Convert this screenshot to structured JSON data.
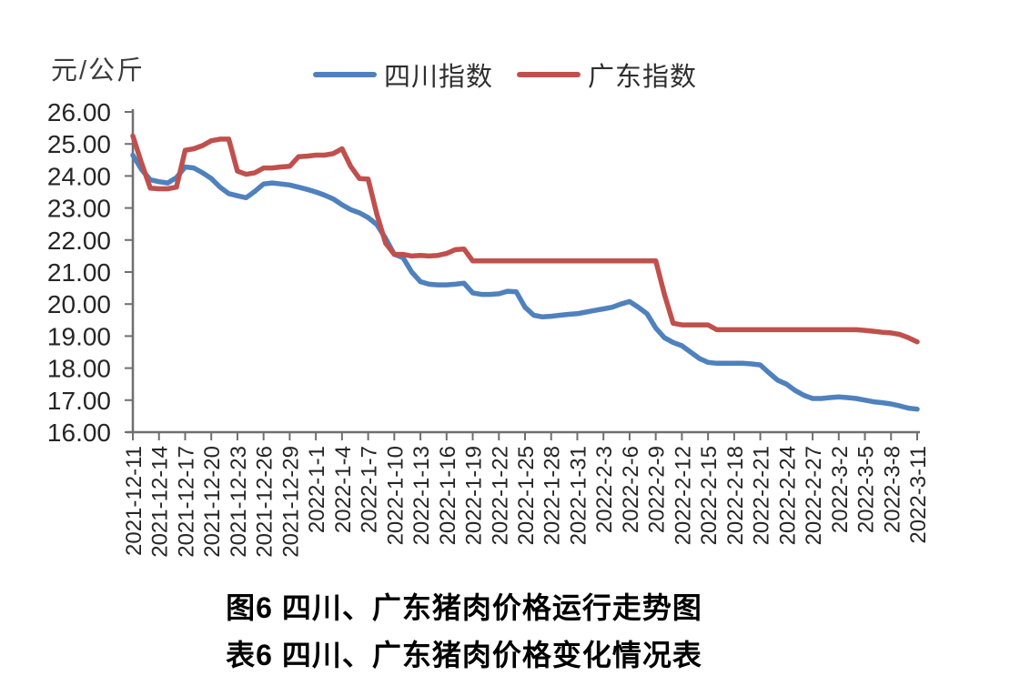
{
  "unit_label": "元/公斤",
  "legend": {
    "sichuan": "四川指数",
    "guangdong": "广东指数"
  },
  "captions": {
    "figure": "图6 四川、广东猪肉价格运行走势图",
    "table": "表6 四川、广东猪肉价格变化情况表"
  },
  "colors": {
    "sichuan": "#4F81BD",
    "guangdong": "#C0504D",
    "axis": "#6F6F6F",
    "tick_label": "#262626"
  },
  "chart_data": {
    "type": "line",
    "title": "图6 四川、广东猪肉价格运行走势图",
    "ylabel": "元/公斤",
    "ylim": [
      16,
      26
    ],
    "ytick_step": 1,
    "grid": false,
    "legend_position": "top",
    "x": [
      "2021-12-11",
      "2021-12-12",
      "2021-12-13",
      "2021-12-14",
      "2021-12-15",
      "2021-12-16",
      "2021-12-17",
      "2021-12-18",
      "2021-12-19",
      "2021-12-20",
      "2021-12-21",
      "2021-12-22",
      "2021-12-23",
      "2021-12-24",
      "2021-12-25",
      "2021-12-26",
      "2021-12-27",
      "2021-12-28",
      "2021-12-29",
      "2021-12-30",
      "2021-12-31",
      "2022-1-1",
      "2022-1-2",
      "2022-1-3",
      "2022-1-4",
      "2022-1-5",
      "2022-1-6",
      "2022-1-7",
      "2022-1-8",
      "2022-1-9",
      "2022-1-10",
      "2022-1-11",
      "2022-1-12",
      "2022-1-13",
      "2022-1-14",
      "2022-1-15",
      "2022-1-16",
      "2022-1-17",
      "2022-1-18",
      "2022-1-19",
      "2022-1-20",
      "2022-1-21",
      "2022-1-22",
      "2022-1-23",
      "2022-1-24",
      "2022-1-25",
      "2022-1-26",
      "2022-1-27",
      "2022-1-28",
      "2022-1-29",
      "2022-1-30",
      "2022-1-31",
      "2022-2-1",
      "2022-2-2",
      "2022-2-3",
      "2022-2-4",
      "2022-2-5",
      "2022-2-6",
      "2022-2-7",
      "2022-2-8",
      "2022-2-9",
      "2022-2-10",
      "2022-2-11",
      "2022-2-12",
      "2022-2-13",
      "2022-2-14",
      "2022-2-15",
      "2022-2-16",
      "2022-2-17",
      "2022-2-18",
      "2022-2-19",
      "2022-2-20",
      "2022-2-21",
      "2022-2-22",
      "2022-2-23",
      "2022-2-24",
      "2022-2-25",
      "2022-2-26",
      "2022-2-27",
      "2022-2-28",
      "2022-3-1",
      "2022-3-2",
      "2022-3-3",
      "2022-3-4",
      "2022-3-5",
      "2022-3-6",
      "2022-3-7",
      "2022-3-8",
      "2022-3-9",
      "2022-3-10",
      "2022-3-11"
    ],
    "x_tick_labels": [
      "2021-12-11",
      "2021-12-14",
      "2021-12-17",
      "2021-12-20",
      "2021-12-23",
      "2021-12-26",
      "2021-12-29",
      "2022-1-1",
      "2022-1-4",
      "2022-1-7",
      "2022-1-10",
      "2022-1-13",
      "2022-1-16",
      "2022-1-19",
      "2022-1-22",
      "2022-1-25",
      "2022-1-28",
      "2022-1-31",
      "2022-2-3",
      "2022-2-6",
      "2022-2-9",
      "2022-2-12",
      "2022-2-15",
      "2022-2-18",
      "2022-2-21",
      "2022-2-24",
      "2022-2-27",
      "2022-3-2",
      "2022-3-5",
      "2022-3-8",
      "2022-3-11"
    ],
    "series": [
      {
        "key": "sichuan",
        "name": "四川指数",
        "color": "#4F81BD",
        "values": [
          24.65,
          24.2,
          23.88,
          23.82,
          23.78,
          23.95,
          24.28,
          24.25,
          24.1,
          23.92,
          23.65,
          23.45,
          23.38,
          23.32,
          23.52,
          23.75,
          23.78,
          23.75,
          23.72,
          23.65,
          23.58,
          23.5,
          23.4,
          23.28,
          23.1,
          22.95,
          22.85,
          22.7,
          22.48,
          22.05,
          21.55,
          21.45,
          21.0,
          20.7,
          20.62,
          20.6,
          20.6,
          20.62,
          20.65,
          20.35,
          20.3,
          20.3,
          20.32,
          20.4,
          20.38,
          19.9,
          19.65,
          19.6,
          19.62,
          19.65,
          19.68,
          19.7,
          19.75,
          19.8,
          19.85,
          19.9,
          20.0,
          20.08,
          19.9,
          19.7,
          19.25,
          18.95,
          18.8,
          18.7,
          18.5,
          18.3,
          18.18,
          18.15,
          18.15,
          18.15,
          18.15,
          18.13,
          18.1,
          17.85,
          17.62,
          17.5,
          17.3,
          17.15,
          17.05,
          17.05,
          17.08,
          17.1,
          17.08,
          17.05,
          17.0,
          16.95,
          16.92,
          16.88,
          16.82,
          16.75,
          16.72
        ]
      },
      {
        "key": "guangdong",
        "name": "广东指数",
        "color": "#C0504D",
        "values": [
          25.25,
          24.4,
          23.62,
          23.6,
          23.6,
          23.65,
          24.8,
          24.85,
          24.95,
          25.1,
          25.15,
          25.15,
          24.15,
          24.05,
          24.1,
          24.25,
          24.25,
          24.28,
          24.3,
          24.6,
          24.62,
          24.65,
          24.65,
          24.7,
          24.85,
          24.3,
          23.92,
          23.9,
          22.8,
          21.9,
          21.55,
          21.55,
          21.5,
          21.52,
          21.5,
          21.52,
          21.58,
          21.7,
          21.72,
          21.35,
          21.35,
          21.35,
          21.35,
          21.35,
          21.35,
          21.35,
          21.35,
          21.35,
          21.35,
          21.35,
          21.35,
          21.35,
          21.35,
          21.35,
          21.35,
          21.35,
          21.35,
          21.35,
          21.35,
          21.35,
          21.35,
          20.3,
          19.4,
          19.35,
          19.35,
          19.35,
          19.35,
          19.2,
          19.2,
          19.2,
          19.2,
          19.2,
          19.2,
          19.2,
          19.2,
          19.2,
          19.2,
          19.2,
          19.2,
          19.2,
          19.2,
          19.2,
          19.2,
          19.2,
          19.18,
          19.15,
          19.12,
          19.1,
          19.05,
          18.95,
          18.82
        ]
      }
    ]
  }
}
